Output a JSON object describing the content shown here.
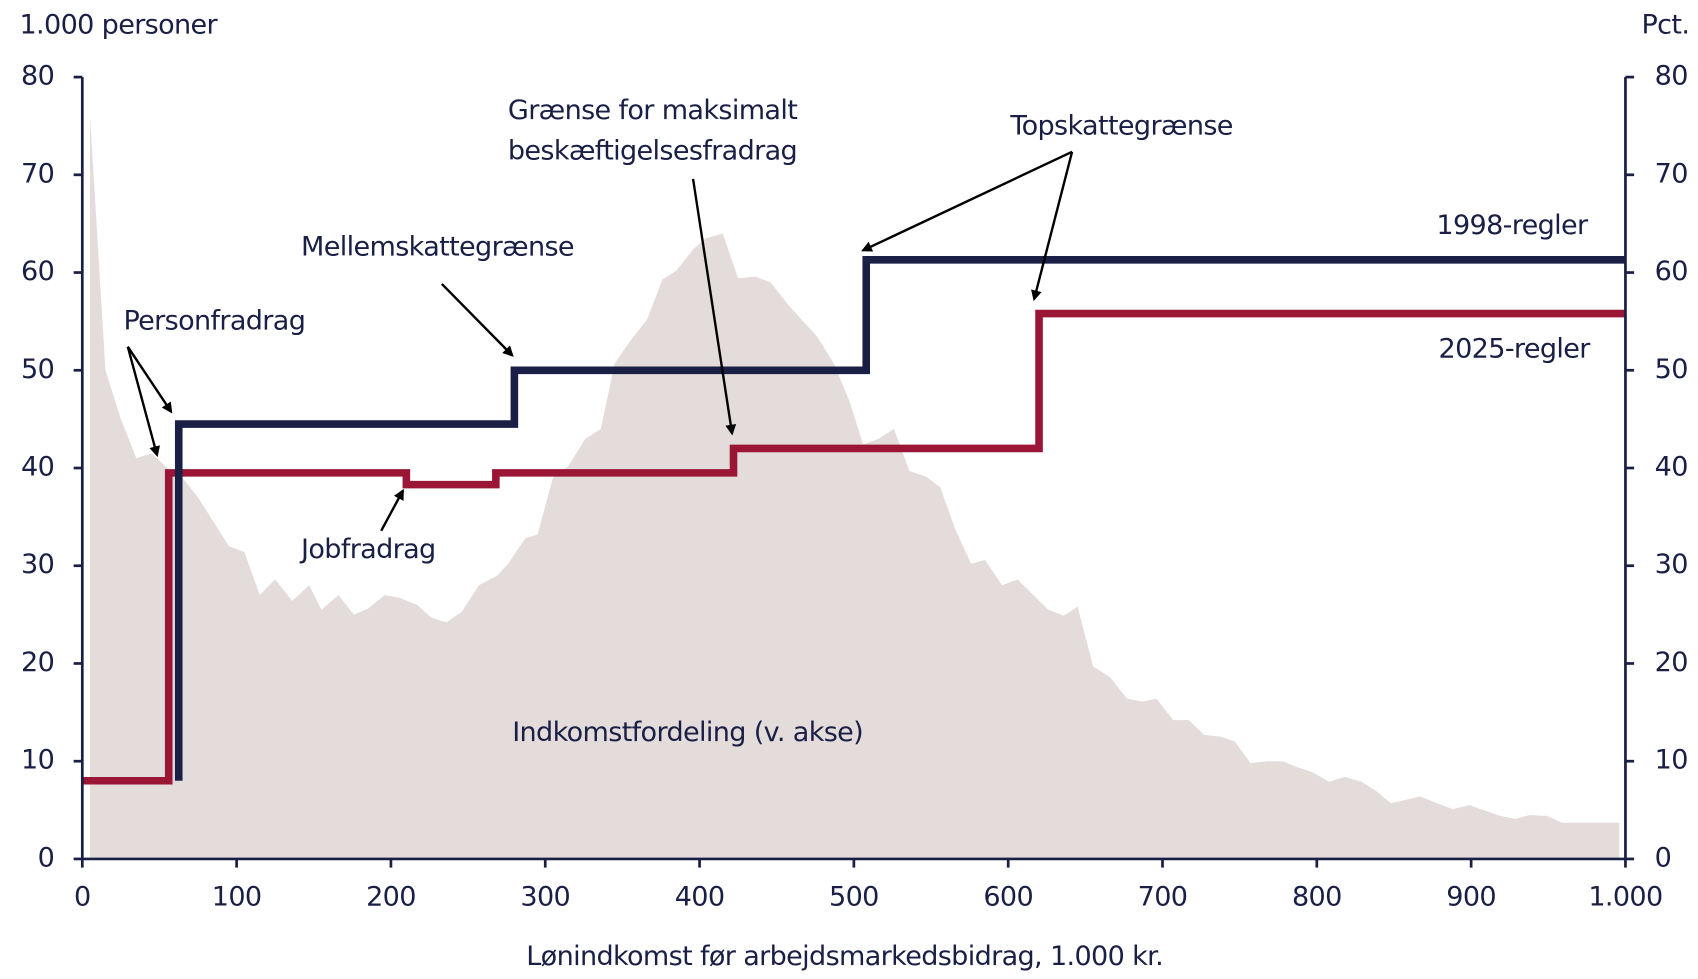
{
  "chart_data": {
    "type": "area-step",
    "y_label": "1.000 personer",
    "y2_label": "Pct.",
    "x_label": "Lønindkomst før arbejdsmarkedsbidrag, 1.000 kr.",
    "xlim": [
      0,
      1000
    ],
    "xticks": [
      0,
      100,
      200,
      300,
      400,
      500,
      600,
      700,
      800,
      900,
      {
        "value": 1000,
        "label": "1.000"
      }
    ],
    "ylim": [
      0,
      80
    ],
    "yticks": [
      0,
      10,
      20,
      30,
      40,
      50,
      60,
      70,
      80
    ],
    "y2lim": [
      0,
      80
    ],
    "y2ticks": [
      0,
      10,
      20,
      30,
      40,
      50,
      60,
      70,
      80
    ],
    "distribution": {
      "name": "Indkomstfordeling (v. akse)",
      "color": "#e3dcdb",
      "x": [
        5,
        15,
        25,
        35,
        45,
        55,
        65,
        75,
        85,
        95,
        105,
        115,
        125,
        136,
        147,
        155,
        166,
        176,
        185,
        196,
        206,
        217,
        226,
        236,
        246,
        257,
        269,
        276,
        287,
        295,
        305,
        315,
        326,
        336,
        345,
        355,
        366,
        376,
        385,
        396,
        404,
        415,
        425,
        436,
        446,
        457,
        466,
        476,
        487,
        497,
        506,
        516,
        526,
        536,
        547,
        556,
        566,
        576,
        585,
        596,
        606,
        617,
        626,
        636,
        645,
        655,
        666,
        677,
        687,
        696,
        707,
        717,
        727,
        738,
        747,
        757,
        768,
        778,
        787,
        797,
        808,
        818,
        829,
        838,
        848,
        859,
        867,
        878,
        888,
        899,
        908,
        919,
        929,
        938,
        949,
        959,
        969,
        978,
        989,
        996
      ],
      "values": [
        76,
        50,
        45,
        41,
        41.5,
        40,
        39,
        37,
        34.5,
        32,
        31.4,
        27,
        28.6,
        26.4,
        28,
        25.5,
        27,
        25,
        25.6,
        27,
        26.7,
        26,
        24.7,
        24.2,
        25.3,
        28,
        29,
        30.2,
        32.8,
        33.2,
        39,
        40.2,
        43,
        44,
        50.7,
        53,
        55.2,
        59.3,
        60.2,
        62.4,
        63.5,
        64,
        59.4,
        59.6,
        59,
        56.8,
        55.2,
        53.5,
        50.7,
        46.9,
        42.4,
        43,
        44,
        39.7,
        39.1,
        38,
        33.6,
        30.2,
        30.6,
        28,
        28.6,
        26.9,
        25.5,
        24.9,
        25.8,
        19.7,
        18.6,
        16.4,
        16.1,
        16.4,
        14.2,
        14.2,
        12.7,
        12.5,
        12,
        9.8,
        10,
        10,
        9.4,
        8.9,
        7.9,
        8.4,
        7.9,
        7,
        5.7,
        6.1,
        6.4,
        5.7,
        5.1,
        5.5,
        5,
        4.4,
        4.1,
        4.5,
        4.4,
        3.7,
        3.7,
        3.7,
        3.7,
        3.7
      ]
    },
    "series": [
      {
        "name": "2025-regler",
        "color": "#9b1535",
        "axis": "y2",
        "x": [
          0,
          56,
          210,
          268,
          422,
          620,
          1000
        ],
        "values": [
          8,
          39.5,
          38.3,
          39.5,
          42,
          55.8,
          55.8
        ]
      },
      {
        "name": "1998-regler",
        "color": "#1a1f45",
        "axis": "y2",
        "x": [
          62.5,
          62.5,
          280,
          508,
          1000
        ],
        "values": [
          8,
          44.5,
          50,
          61.3,
          61.3
        ]
      }
    ],
    "annotations": [
      "Personfradrag",
      "Mellemskattegrænse",
      [
        "Grænse for maksimalt",
        "beskæftigelsesfradrag"
      ],
      "Topskattegrænse",
      "Jobfradrag"
    ]
  }
}
